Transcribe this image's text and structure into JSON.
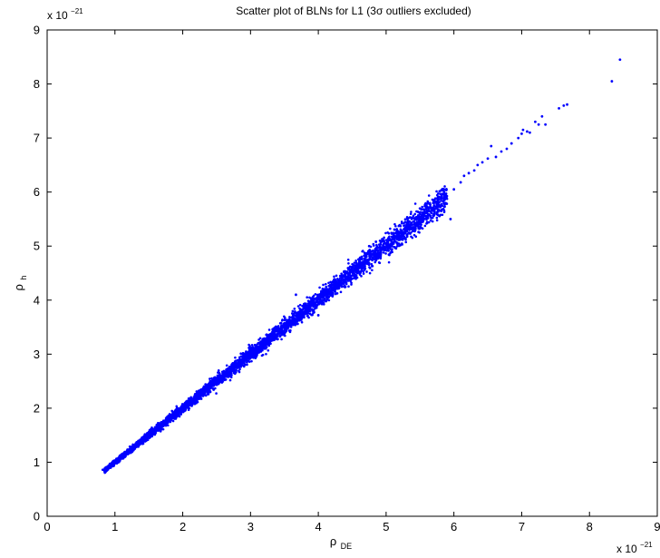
{
  "chart_data": {
    "type": "scatter",
    "title": "Scatter plot of BLNs for L1 (3σ outliers excluded)",
    "xlabel": {
      "main": "ρ",
      "sub": "DE"
    },
    "ylabel": {
      "main": "ρ",
      "sub": "h"
    },
    "x_multiplier": {
      "base": "x 10",
      "exponent": "−21"
    },
    "y_multiplier": {
      "base": "x 10",
      "exponent": "−21"
    },
    "xlim": [
      0,
      9
    ],
    "ylim": [
      0,
      9
    ],
    "xticks": [
      0,
      1,
      2,
      3,
      4,
      5,
      6,
      7,
      8,
      9
    ],
    "yticks": [
      0,
      1,
      2,
      3,
      4,
      5,
      6,
      7,
      8,
      9
    ],
    "grid": false,
    "marker_color": "#0000ff",
    "bulk_band": {
      "x_range": [
        0.85,
        5.9
      ],
      "relation": "y ≈ x",
      "spread_fraction": 0.02
    },
    "points": [
      [
        0.82,
        0.86
      ],
      [
        0.88,
        0.9
      ],
      [
        0.95,
        0.97
      ],
      [
        1.02,
        1.05
      ],
      [
        4.0,
        3.72
      ],
      [
        3.9,
        3.98
      ],
      [
        3.67,
        4.1
      ],
      [
        4.55,
        4.62
      ],
      [
        4.72,
        4.85
      ],
      [
        4.75,
        5.0
      ],
      [
        4.85,
        5.08
      ],
      [
        5.15,
        5.25
      ],
      [
        5.3,
        5.35
      ],
      [
        5.45,
        5.52
      ],
      [
        5.55,
        5.68
      ],
      [
        5.75,
        5.82
      ],
      [
        5.88,
        5.95
      ],
      [
        5.95,
        5.5
      ],
      [
        6.0,
        6.05
      ],
      [
        6.1,
        6.18
      ],
      [
        6.15,
        6.3
      ],
      [
        6.22,
        6.35
      ],
      [
        6.3,
        6.4
      ],
      [
        6.35,
        6.5
      ],
      [
        6.42,
        6.55
      ],
      [
        6.5,
        6.62
      ],
      [
        6.55,
        6.85
      ],
      [
        6.62,
        6.65
      ],
      [
        6.7,
        6.75
      ],
      [
        6.78,
        6.8
      ],
      [
        6.85,
        6.9
      ],
      [
        6.95,
        7.0
      ],
      [
        7.0,
        7.08
      ],
      [
        7.02,
        7.15
      ],
      [
        7.08,
        7.12
      ],
      [
        7.12,
        7.1
      ],
      [
        7.2,
        7.3
      ],
      [
        7.25,
        7.25
      ],
      [
        7.3,
        7.4
      ],
      [
        7.35,
        7.25
      ],
      [
        7.55,
        7.55
      ],
      [
        7.62,
        7.6
      ],
      [
        7.67,
        7.62
      ],
      [
        8.33,
        8.05
      ],
      [
        8.45,
        8.45
      ]
    ]
  }
}
